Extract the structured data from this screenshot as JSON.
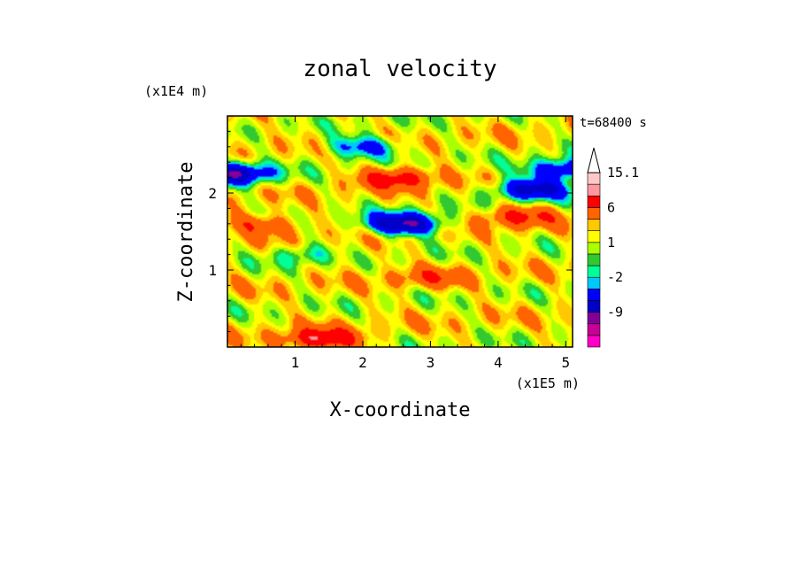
{
  "chart_data": {
    "type": "heatmap",
    "title": "zonal velocity",
    "time_label": "t=68400 s",
    "xlabel": "X-coordinate",
    "ylabel": "Z-coordinate",
    "x_multiplier": "(x1E5 m)",
    "y_multiplier": "(x1E4 m)",
    "xlim": [
      0,
      5.1
    ],
    "ylim": [
      0,
      3.0
    ],
    "x_ticks": [
      1,
      2,
      3,
      4,
      5
    ],
    "y_ticks": [
      1,
      2
    ],
    "x_tick_labels": [
      "1",
      "2",
      "3",
      "4",
      "5"
    ],
    "y_tick_labels": [
      "1",
      "2"
    ],
    "colorbar": {
      "labels": [
        "15.1",
        "6",
        "1",
        "-2",
        "-9"
      ],
      "levels": [
        -15,
        -12,
        -9,
        -6,
        -3,
        -2,
        -1,
        0,
        1,
        2,
        3,
        6,
        9,
        12,
        15.1
      ],
      "colors": [
        "#ff00c8",
        "#c80096",
        "#820096",
        "#0000c8",
        "#0000ff",
        "#00c8ff",
        "#00ff96",
        "#32c832",
        "#aaff00",
        "#ffff00",
        "#ffc800",
        "#ff6400",
        "#ff0000",
        "#ff96a0",
        "#ffc8c8",
        "#ffffff"
      ]
    },
    "field": {
      "description": "zonal velocity contour field; background mostly yellow/green with blue and orange bands",
      "features": [
        {
          "x": 0.1,
          "z": 2.25,
          "u": -10
        },
        {
          "x": 1.35,
          "z": 1.2,
          "u": -12
        },
        {
          "x": 1.45,
          "z": 1.2,
          "u": 10
        },
        {
          "x": 2.6,
          "z": 1.6,
          "u": -11
        },
        {
          "x": 4.5,
          "z": 2.05,
          "u": -9
        },
        {
          "x": 4.3,
          "z": 1.7,
          "u": 5
        },
        {
          "x": 2.5,
          "z": 2.2,
          "u": 6
        },
        {
          "x": 1.4,
          "z": 0.1,
          "u": 7
        },
        {
          "x": 3.0,
          "z": 0.9,
          "u": 3
        },
        {
          "x": 0.5,
          "z": 1.6,
          "u": 4
        },
        {
          "x": 2.0,
          "z": 2.6,
          "u": -6
        },
        {
          "x": 5.0,
          "z": 2.3,
          "u": -8
        }
      ]
    }
  }
}
